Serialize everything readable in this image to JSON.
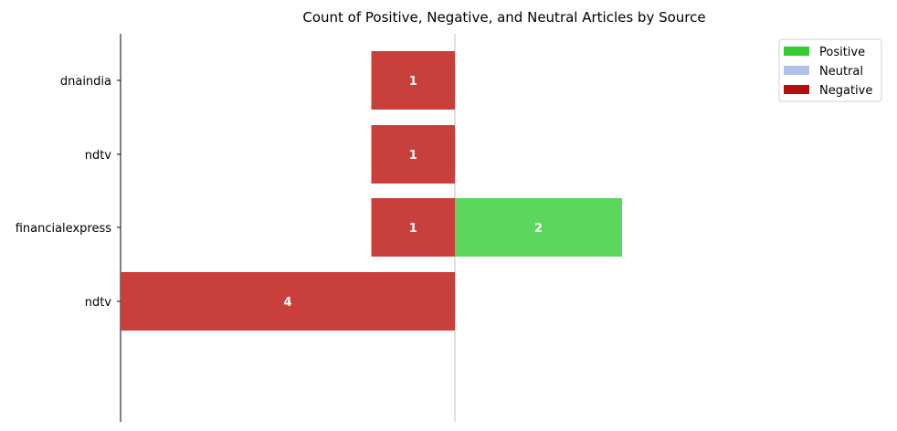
{
  "chart_data": {
    "type": "bar",
    "orientation": "horizontal",
    "title": "Count of Positive, Negative, and Neutral Articles by Source",
    "xlabel": "",
    "ylabel": "",
    "categories": [
      "dnaindia",
      "ndtv",
      "financialexpress",
      "ndtv"
    ],
    "series": [
      {
        "name": "Positive",
        "color": "#5cd65c",
        "values": [
          0,
          0,
          2,
          0
        ]
      },
      {
        "name": "Neutral",
        "color": "#b0c0e8",
        "values": [
          0,
          0,
          0,
          0
        ]
      },
      {
        "name": "Negative",
        "color": "#c93f3c",
        "values": [
          1,
          1,
          1,
          4
        ]
      }
    ],
    "negative_direction": "left",
    "xlim": [
      -4,
      4
    ],
    "grid": false,
    "legend": {
      "placement": "top-right",
      "entries": [
        {
          "label": "Positive",
          "color": "#33cc33"
        },
        {
          "label": "Neutral",
          "color": "#b0c0e8"
        },
        {
          "label": "Negative",
          "color": "#b30f0f"
        }
      ]
    }
  }
}
